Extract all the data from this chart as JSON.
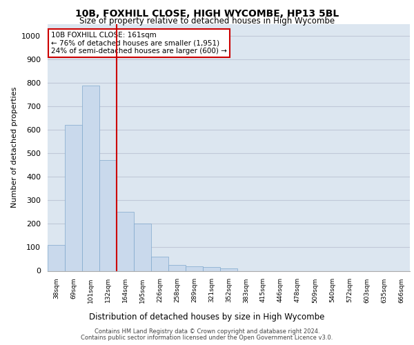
{
  "title1": "10B, FOXHILL CLOSE, HIGH WYCOMBE, HP13 5BL",
  "title2": "Size of property relative to detached houses in High Wycombe",
  "xlabel": "Distribution of detached houses by size in High Wycombe",
  "ylabel": "Number of detached properties",
  "bar_values": [
    110,
    620,
    790,
    470,
    250,
    200,
    60,
    25,
    20,
    15,
    10,
    0,
    0,
    0,
    0,
    0,
    0,
    0,
    0,
    0,
    0
  ],
  "bar_labels": [
    "38sqm",
    "69sqm",
    "101sqm",
    "132sqm",
    "164sqm",
    "195sqm",
    "226sqm",
    "258sqm",
    "289sqm",
    "321sqm",
    "352sqm",
    "383sqm",
    "415sqm",
    "446sqm",
    "478sqm",
    "509sqm",
    "540sqm",
    "572sqm",
    "603sqm",
    "635sqm",
    "666sqm"
  ],
  "bar_color": "#c9d9ec",
  "bar_edge_color": "#7fa8cc",
  "vline_color": "#cc0000",
  "annotation_text": "10B FOXHILL CLOSE: 161sqm\n← 76% of detached houses are smaller (1,951)\n24% of semi-detached houses are larger (600) →",
  "annotation_box_color": "#ffffff",
  "annotation_box_edge": "#cc0000",
  "ylim": [
    0,
    1050
  ],
  "yticks": [
    0,
    100,
    200,
    300,
    400,
    500,
    600,
    700,
    800,
    900,
    1000
  ],
  "grid_color": "#c0c8d8",
  "bg_color": "#dce6f0",
  "footer1": "Contains HM Land Registry data © Crown copyright and database right 2024.",
  "footer2": "Contains public sector information licensed under the Open Government Licence v3.0."
}
